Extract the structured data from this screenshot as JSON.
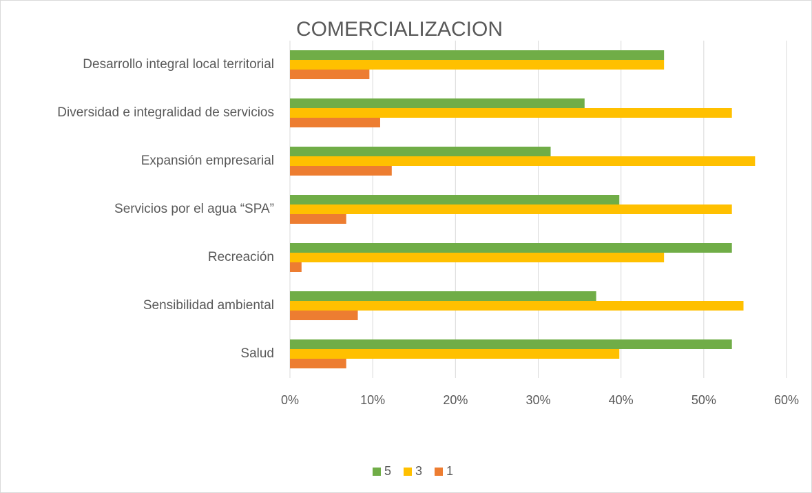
{
  "chart_data": {
    "type": "bar",
    "orientation": "horizontal",
    "title": "COMERCIALIZACION",
    "categories": [
      "Desarrollo integral local territorial",
      "Diversidad e integralidad de servicios",
      "Expansión empresarial",
      "Servicios por el agua “SPA”",
      "Recreación",
      "Sensibilidad ambiental",
      "Salud"
    ],
    "series": [
      {
        "name": "5",
        "color": "#70ad47",
        "values": [
          45.2,
          35.6,
          31.5,
          39.8,
          53.4,
          37.0,
          53.4
        ]
      },
      {
        "name": "3",
        "color": "#ffc000",
        "values": [
          45.2,
          53.4,
          56.2,
          53.4,
          45.2,
          54.8,
          39.8
        ]
      },
      {
        "name": "1",
        "color": "#ed7d31",
        "values": [
          9.6,
          10.9,
          12.3,
          6.8,
          1.4,
          8.2,
          6.8
        ]
      }
    ],
    "xlim": [
      0,
      60
    ],
    "xticks": [
      {
        "value": 0,
        "label": "0%"
      },
      {
        "value": 10,
        "label": "10%"
      },
      {
        "value": 20,
        "label": "20%"
      },
      {
        "value": 30,
        "label": "30%"
      },
      {
        "value": 40,
        "label": "40%"
      },
      {
        "value": 50,
        "label": "50%"
      },
      {
        "value": 60,
        "label": "60%"
      }
    ],
    "grid": true,
    "legend": "bottom"
  }
}
